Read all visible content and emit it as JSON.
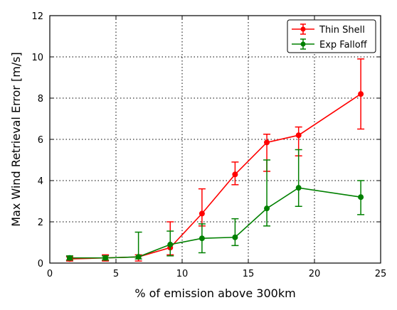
{
  "chart_data": {
    "type": "line",
    "title": "",
    "xlabel": "% of emission above 300km",
    "ylabel": "Max Wind Retrieval Error [m/s]",
    "xlim": [
      0,
      25
    ],
    "ylim": [
      0,
      12
    ],
    "xticks": [
      0,
      5,
      10,
      15,
      20,
      25
    ],
    "yticks": [
      0,
      2,
      4,
      6,
      8,
      10,
      12
    ],
    "grid": true,
    "legend_position": "top-right",
    "series": [
      {
        "name": "Thin Shell",
        "color": "#ff0000",
        "x": [
          1.5,
          4.2,
          6.7,
          9.1,
          11.5,
          14.0,
          16.4,
          18.8,
          23.5
        ],
        "y": [
          0.2,
          0.25,
          0.3,
          0.75,
          2.4,
          4.3,
          5.85,
          6.2,
          8.2
        ],
        "err_low": [
          0.1,
          0.1,
          0.1,
          0.4,
          1.8,
          3.8,
          4.45,
          5.2,
          6.5
        ],
        "err_high": [
          0.3,
          0.4,
          0.4,
          2.0,
          3.6,
          4.9,
          6.25,
          6.6,
          9.9
        ]
      },
      {
        "name": "Exp Falloff",
        "color": "#008000",
        "x": [
          1.5,
          4.2,
          6.7,
          9.1,
          11.5,
          14.0,
          16.4,
          18.8,
          23.5
        ],
        "y": [
          0.25,
          0.25,
          0.3,
          0.9,
          1.2,
          1.25,
          2.65,
          3.65,
          3.2
        ],
        "err_low": [
          0.15,
          0.15,
          0.2,
          0.35,
          0.5,
          0.85,
          1.8,
          2.75,
          2.35
        ],
        "err_high": [
          0.35,
          0.35,
          1.5,
          1.55,
          1.9,
          2.15,
          5.0,
          5.5,
          4.0
        ]
      }
    ]
  }
}
